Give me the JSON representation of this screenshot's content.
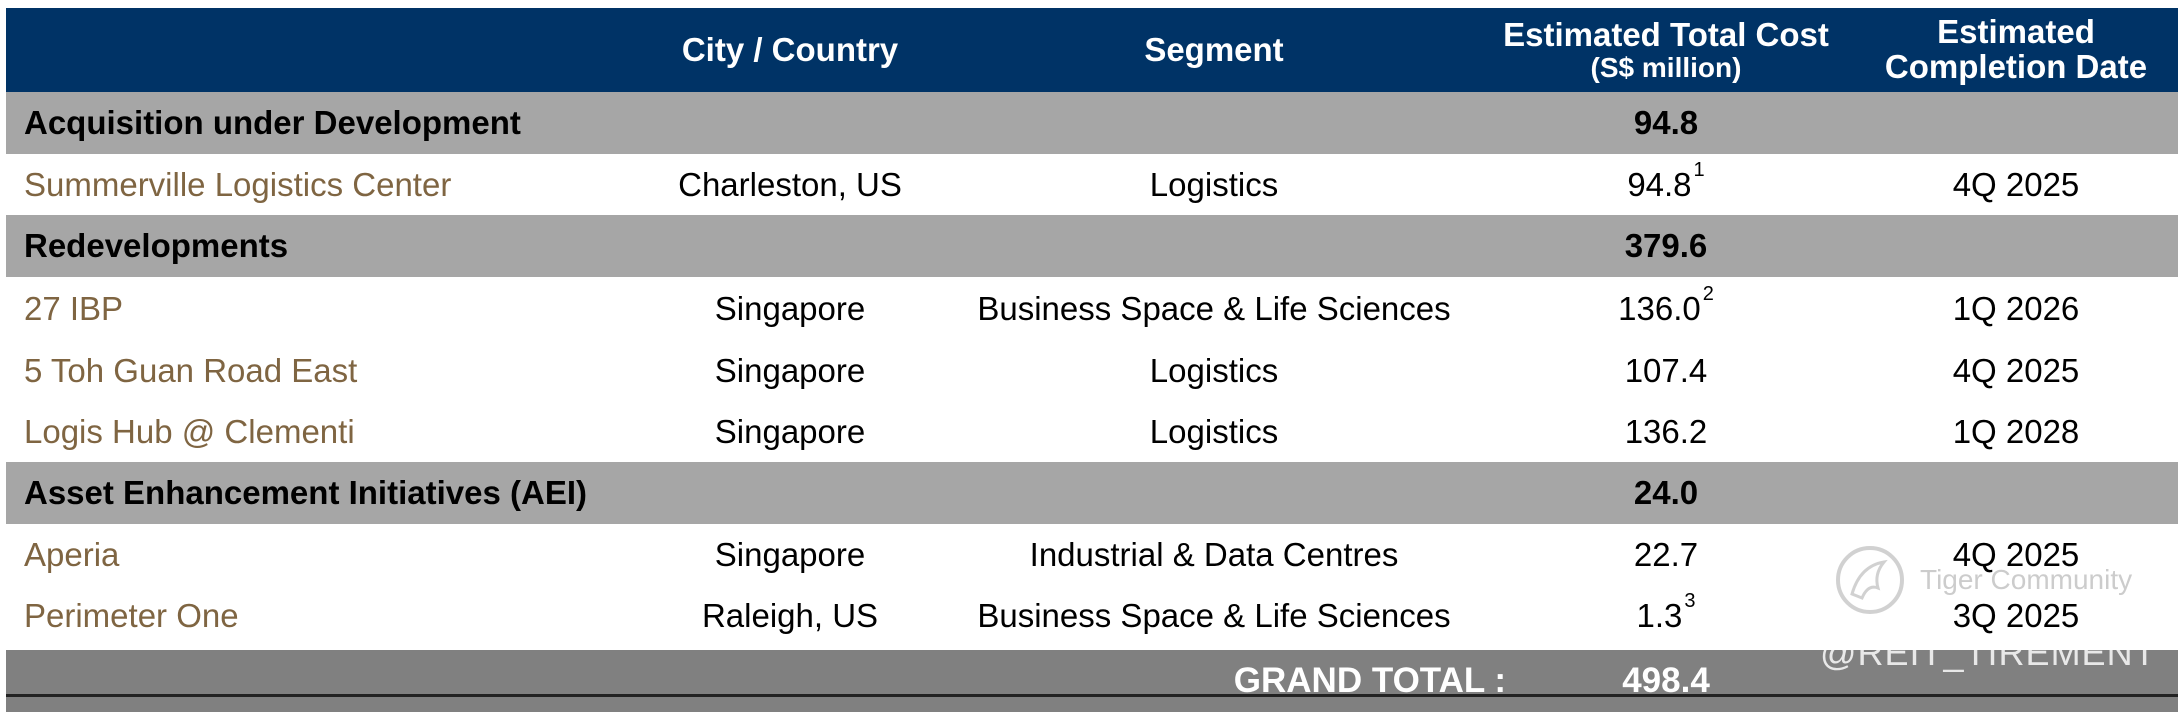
{
  "header": {
    "col_city": "City / Country",
    "col_segment": "Segment",
    "col_cost": "Estimated Total Cost",
    "col_cost_unit": "(S$ million)",
    "col_date_line1": "Estimated",
    "col_date_line2": "Completion Date"
  },
  "sections": [
    {
      "title": "Acquisition under Development",
      "total": "94.8",
      "rows": [
        {
          "name": "Summerville Logistics Center",
          "city": "Charleston, US",
          "segment": "Logistics",
          "cost": "94.8",
          "note": "1",
          "date": "4Q 2025"
        }
      ]
    },
    {
      "title": "Redevelopments",
      "total": "379.6",
      "rows": [
        {
          "name": "27 IBP",
          "city": "Singapore",
          "segment": "Business Space & Life Sciences",
          "cost": "136.0",
          "note": "2",
          "date": "1Q 2026"
        },
        {
          "name": "5 Toh Guan Road East",
          "city": "Singapore",
          "segment": "Logistics",
          "cost": "107.4",
          "note": "",
          "date": "4Q 2025"
        },
        {
          "name": "Logis Hub @ Clementi",
          "city": "Singapore",
          "segment": "Logistics",
          "cost": "136.2",
          "note": "",
          "date": "1Q 2028"
        }
      ]
    },
    {
      "title": "Asset Enhancement Initiatives (AEI)",
      "total": "24.0",
      "rows": [
        {
          "name": "Aperia",
          "city": "Singapore",
          "segment": "Industrial & Data Centres",
          "cost": "22.7",
          "note": "",
          "date": "4Q 2025"
        },
        {
          "name": "Perimeter One",
          "city": "Raleigh, US",
          "segment": "Business Space & Life Sciences",
          "cost": "1.3",
          "note": "3",
          "date": "3Q 2025"
        }
      ]
    }
  ],
  "grand_total": {
    "label": "GRAND TOTAL :",
    "value": "498.4"
  },
  "watermark": {
    "brand": "Tiger Community",
    "handle": "@REIT_TIREMENT"
  },
  "colors": {
    "header_bg": "#003366",
    "section_bg": "#a6a6a6",
    "total_bg": "#808080",
    "property_text": "#7f6542"
  }
}
